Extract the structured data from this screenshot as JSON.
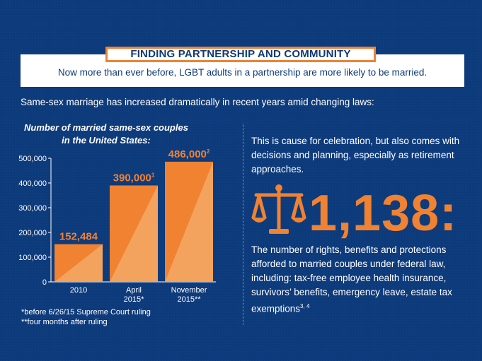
{
  "header": {
    "title": "FINDING PARTNERSHIP AND COMMUNITY",
    "subtitle": "Now more than ever before, LGBT adults in a partnership are more likely to be married."
  },
  "intro_text": "Same-sex marriage has increased dramatically in recent years amid changing laws:",
  "chart_title_line1": "Number of married same-sex couples",
  "chart_title_line2": "in the United States:",
  "chart_data": {
    "type": "bar",
    "title": "Number of married same-sex couples in the United States:",
    "categories": [
      [
        "2010"
      ],
      [
        "April",
        "2015*"
      ],
      [
        "November",
        "2015**"
      ]
    ],
    "values": [
      152484,
      390000,
      486000
    ],
    "value_labels": [
      "152,484",
      "390,000",
      "486,000"
    ],
    "value_label_sups": [
      "",
      "1",
      "2"
    ],
    "ylim": [
      0,
      500000
    ],
    "yticks": [
      "0",
      "100,000",
      "200,000",
      "300,000",
      "400,000",
      "500,000"
    ],
    "grid": false,
    "colors": {
      "bar": "#f08232",
      "bar_light": "#f4a35f",
      "label": "#f08232",
      "axis": "#ffffff"
    }
  },
  "footnotes": {
    "note1": "*before 6/26/15 Supreme Court ruling",
    "note2": "**four months after ruling"
  },
  "right": {
    "para1": "This is cause for celebration, but also comes with decisions and planning, especially as retirement approaches.",
    "big_number": "1,138:",
    "icon": "scales-of-justice-icon",
    "para2": "The number of rights, benefits and protections afforded to married couples under federal law, including: tax-free employee health insurance, survivors’ benefits, emergency leave, estate tax exemptions",
    "para2_sup": "3, 4"
  },
  "colors": {
    "background": "#0d3a7a",
    "accent": "#f08232",
    "text": "#ffffff"
  }
}
